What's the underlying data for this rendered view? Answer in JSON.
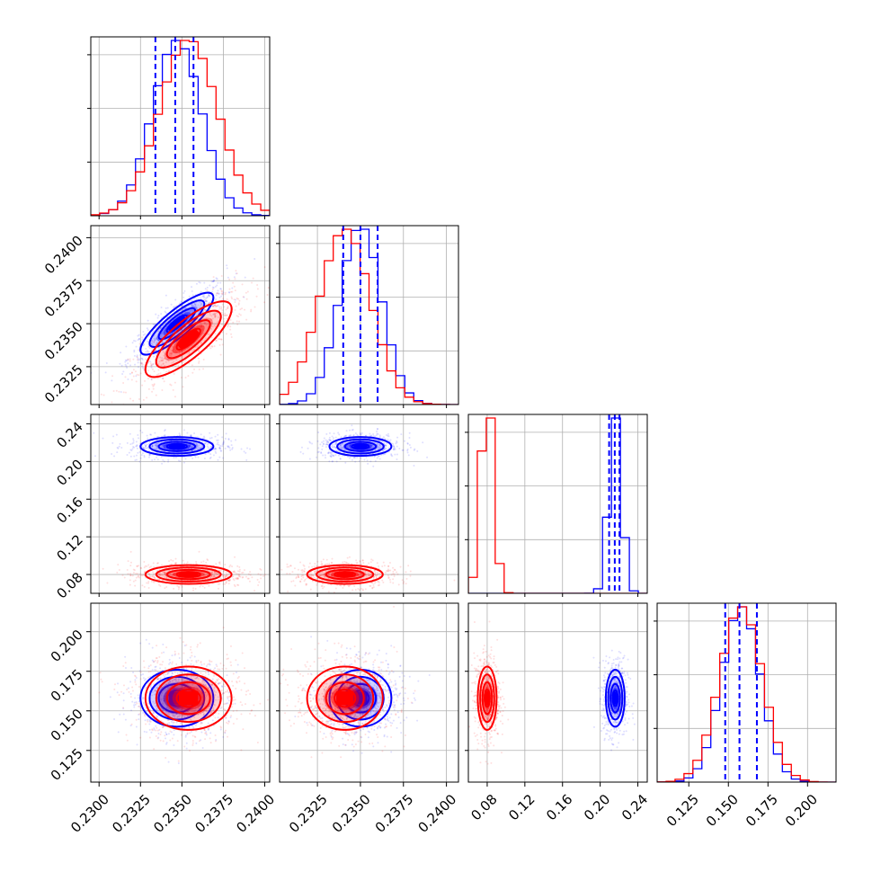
{
  "colors": {
    "series_a": "#0000ff",
    "series_b": "#ff0000",
    "grid": "#b0b0b0",
    "frame": "#000000"
  },
  "chart_data": {
    "type": "corner",
    "grid": true,
    "parameters": [
      {
        "range": [
          0.2295,
          0.2403
        ],
        "ticks": [
          0.23,
          0.2325,
          0.235,
          0.2375,
          0.24
        ],
        "tick_labels": [
          "0.2300",
          "0.2325",
          "0.2350",
          "0.2375",
          "0.2400"
        ]
      },
      {
        "range": [
          0.2303,
          0.2407
        ],
        "ticks": [
          0.2325,
          0.235,
          0.2375,
          0.24
        ],
        "tick_labels": [
          "0.2325",
          "0.2350",
          "0.2375",
          "0.2400"
        ]
      },
      {
        "range": [
          0.06,
          0.25
        ],
        "ticks": [
          0.08,
          0.12,
          0.16,
          0.2,
          0.24
        ],
        "tick_labels": [
          "0.08",
          "0.12",
          "0.16",
          "0.20",
          "0.24"
        ]
      },
      {
        "range": [
          0.105,
          0.218
        ],
        "ticks": [
          0.125,
          0.15,
          0.175,
          0.2
        ],
        "tick_labels": [
          "0.125",
          "0.150",
          "0.175",
          "0.200"
        ]
      }
    ],
    "series": [
      {
        "color": "#0000ff",
        "mean": [
          0.2347,
          0.235,
          0.216,
          0.158
        ],
        "sd": [
          0.0011,
          0.0009,
          0.005,
          0.009
        ],
        "corr01": 0.85,
        "quantiles": [
          [
            0.2334,
            0.2346,
            0.2357
          ],
          [
            0.234,
            0.235,
            0.236
          ],
          [
            0.2095,
            0.2155,
            0.2205
          ],
          [
            0.148,
            0.157,
            0.168
          ]
        ]
      },
      {
        "color": "#ff0000",
        "mean": [
          0.2354,
          0.2341,
          0.08,
          0.158
        ],
        "sd": [
          0.0013,
          0.0011,
          0.005,
          0.01
        ],
        "corr01": 0.8,
        "quantiles": []
      }
    ]
  }
}
